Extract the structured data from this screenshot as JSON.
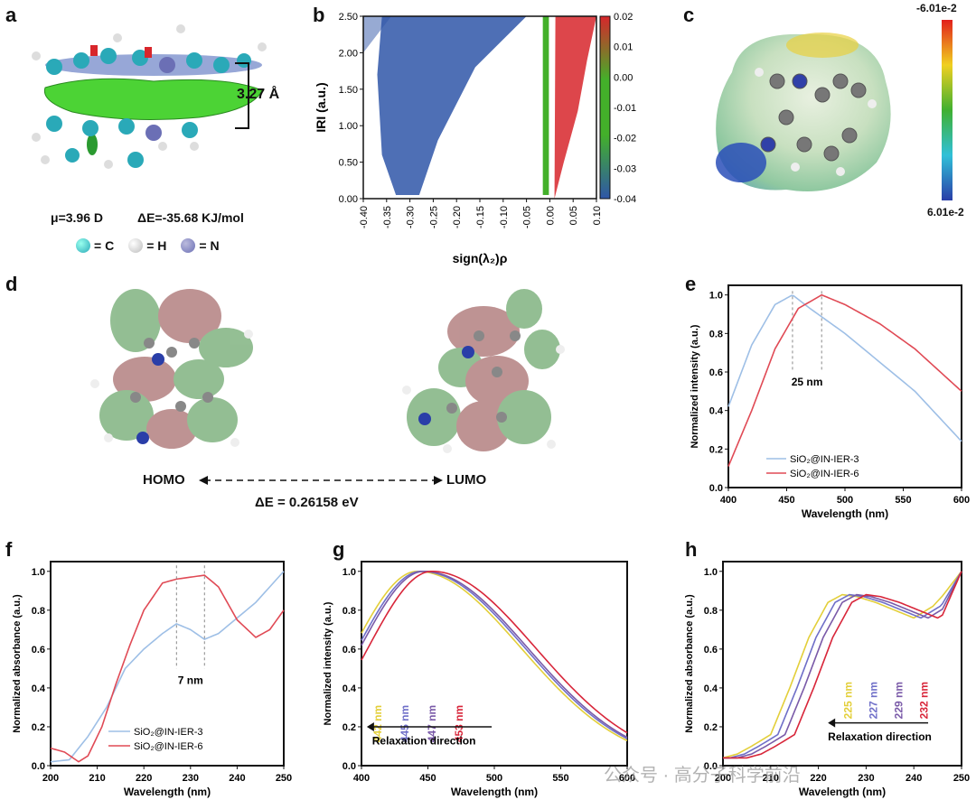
{
  "panels": {
    "a": {
      "label": "a",
      "dimension": "3.27 Å",
      "dipole": "μ=3.96 D",
      "energy": "ΔE=-35.68 KJ/mol",
      "legend": [
        {
          "sym": "= C",
          "color": "#2aa9b8"
        },
        {
          "sym": "= H",
          "color": "#e6e6e6"
        },
        {
          "sym": "= N",
          "color": "#6b6fb5"
        }
      ]
    },
    "b": {
      "label": "b"
    },
    "c": {
      "label": "c",
      "top": "-6.01e-2",
      "bottom": "6.01e-2"
    },
    "d": {
      "label": "d",
      "homo": "HOMO",
      "lumo": "LUMO",
      "gap": "ΔE = 0.26158 eV"
    },
    "e": {
      "label": "e",
      "gap": "25 nm"
    },
    "f": {
      "label": "f",
      "gap": "7 nm"
    },
    "g": {
      "label": "g",
      "relax": "Relaxation direction"
    },
    "h": {
      "label": "h",
      "relax": "Relaxation direction"
    }
  },
  "watermark": "公众号 · 高分子科学前沿",
  "chart_data": [
    {
      "id": "b",
      "type": "scatter",
      "xlabel": "sign(λ₂)ρ",
      "ylabel": "IRI (a.u.)",
      "xlim": [
        -0.4,
        0.1
      ],
      "ylim": [
        0.0,
        2.5
      ],
      "xticks": [
        "-0.40",
        "-0.35",
        "-0.30",
        "-0.25",
        "-0.20",
        "-0.15",
        "-0.10",
        "-0.05",
        "0.00",
        "0.05",
        "0.10"
      ],
      "yticks": [
        "0.00",
        "0.50",
        "1.00",
        "1.50",
        "2.00",
        "2.50"
      ],
      "colorbar": {
        "ticks": [
          "0.02",
          "0.01",
          "0.00",
          "-0.01",
          "-0.02",
          "-0.03",
          "-0.04"
        ],
        "colors": [
          "#d7262b",
          "#43b02a",
          "#2f56a8"
        ]
      }
    },
    {
      "id": "e",
      "type": "line",
      "xlabel": "Wavelength (nm)",
      "ylabel": "Normalized intensity (a.u.)",
      "xlim": [
        400,
        600
      ],
      "ylim": [
        0,
        1.05
      ],
      "xticks": [
        400,
        450,
        500,
        550,
        600
      ],
      "yticks": [
        0.0,
        0.2,
        0.4,
        0.6,
        0.8,
        1.0
      ],
      "series": [
        {
          "name": "SiO₂@IN-IER-3",
          "color": "#9ebfe6",
          "peak": 455,
          "x": [
            400,
            420,
            440,
            455,
            470,
            500,
            530,
            560,
            600
          ],
          "y": [
            0.42,
            0.74,
            0.95,
            1.0,
            0.93,
            0.8,
            0.65,
            0.5,
            0.24
          ]
        },
        {
          "name": "SiO₂@IN-IER-6",
          "color": "#e04a55",
          "peak": 480,
          "x": [
            400,
            420,
            440,
            460,
            480,
            500,
            530,
            560,
            600
          ],
          "y": [
            0.11,
            0.4,
            0.72,
            0.93,
            1.0,
            0.95,
            0.85,
            0.72,
            0.5
          ]
        }
      ]
    },
    {
      "id": "f",
      "type": "line",
      "xlabel": "Wavelength (nm)",
      "ylabel": "Normalized absorbance (a.u.)",
      "xlim": [
        200,
        250
      ],
      "ylim": [
        0,
        1.05
      ],
      "xticks": [
        200,
        210,
        220,
        230,
        240,
        250
      ],
      "yticks": [
        0.0,
        0.2,
        0.4,
        0.6,
        0.8,
        1.0
      ],
      "series": [
        {
          "name": "SiO₂@IN-IER-3",
          "color": "#9ebfe6",
          "x": [
            200,
            204,
            208,
            212,
            216,
            220,
            224,
            227,
            230,
            233,
            236,
            240,
            244,
            247,
            250
          ],
          "y": [
            0.02,
            0.03,
            0.15,
            0.3,
            0.5,
            0.6,
            0.68,
            0.73,
            0.7,
            0.65,
            0.68,
            0.76,
            0.84,
            0.92,
            1.0
          ]
        },
        {
          "name": "SiO₂@IN-IER-6",
          "color": "#e04a55",
          "x": [
            200,
            203,
            206,
            208,
            211,
            214,
            217,
            220,
            224,
            227,
            230,
            233,
            236,
            240,
            244,
            247,
            250
          ],
          "y": [
            0.09,
            0.07,
            0.02,
            0.05,
            0.2,
            0.42,
            0.62,
            0.8,
            0.94,
            0.96,
            0.97,
            0.98,
            0.92,
            0.75,
            0.66,
            0.7,
            0.8
          ]
        }
      ]
    },
    {
      "id": "g",
      "type": "line",
      "xlabel": "Wavelength (nm)",
      "ylabel": "Normalized intensity (a.u.)",
      "xlim": [
        400,
        600
      ],
      "ylim": [
        0,
        1.05
      ],
      "xticks": [
        400,
        450,
        500,
        550,
        600
      ],
      "yticks": [
        0.0,
        0.2,
        0.4,
        0.6,
        0.8,
        1.0
      ],
      "series": [
        {
          "name": "442 nm",
          "color": "#e3cf3a",
          "peak": 442
        },
        {
          "name": "445 nm",
          "color": "#6f6fc8",
          "peak": 445
        },
        {
          "name": "447 nm",
          "color": "#7a5aa8",
          "peak": 447
        },
        {
          "name": "453 nm",
          "color": "#d8263a",
          "peak": 453
        }
      ]
    },
    {
      "id": "h",
      "type": "line",
      "xlabel": "Wavelength (nm)",
      "ylabel": "Normalized absorbance (a.u.)",
      "xlim": [
        200,
        250
      ],
      "ylim": [
        0,
        1.05
      ],
      "xticks": [
        200,
        210,
        220,
        230,
        240,
        250
      ],
      "yticks": [
        0.0,
        0.2,
        0.4,
        0.6,
        0.8,
        1.0
      ],
      "series": [
        {
          "name": "225 nm",
          "color": "#e3cf3a",
          "shift": 0
        },
        {
          "name": "227 nm",
          "color": "#6f6fc8",
          "shift": 1.5
        },
        {
          "name": "229 nm",
          "color": "#7a5aa8",
          "shift": 3
        },
        {
          "name": "232 nm",
          "color": "#d8263a",
          "shift": 5
        }
      ]
    }
  ]
}
